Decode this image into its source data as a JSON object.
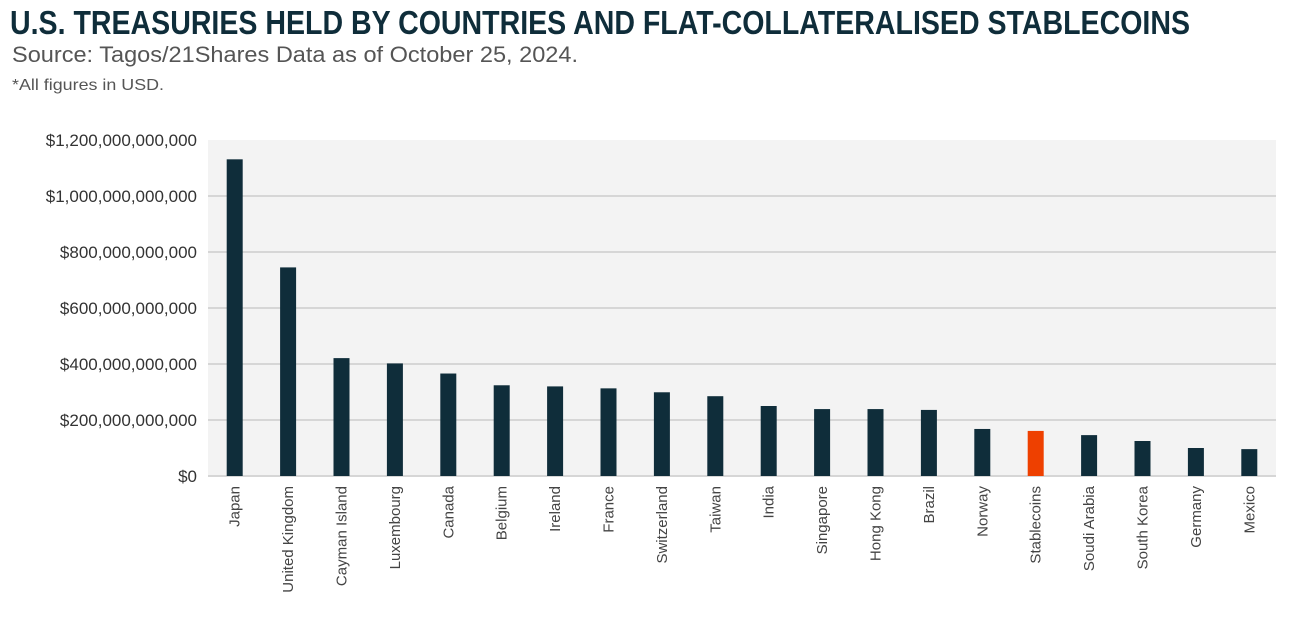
{
  "chart_data": {
    "type": "bar",
    "title": "U.S. TREASURIES HELD BY COUNTRIES AND FLAT-COLLATERALISED STABLECOINS",
    "subtitle": "Source: Tagos/21Shares Data as of October 25, 2024.",
    "note": "*All figures in USD.",
    "xlabel": "",
    "ylabel": "",
    "ylim": [
      0,
      1200000000000
    ],
    "grid": true,
    "yticks": [
      0,
      200000000000,
      400000000000,
      600000000000,
      800000000000,
      1000000000000,
      1200000000000
    ],
    "ytick_labels": [
      "$0",
      "$200,000,000,000",
      "$400,000,000,000",
      "$600,000,000,000",
      "$800,000,000,000",
      "$1,000,000,000,000",
      "$1,200,000,000,000"
    ],
    "categories": [
      "Japan",
      "United Kingdom",
      "Cayman Island",
      "Luxembourg",
      "Canada",
      "Belgium",
      "Ireland",
      "France",
      "Switzerland",
      "Taiwan",
      "India",
      "Singapore",
      "Hong Kong",
      "Brazil",
      "Norway",
      "Stablecoins",
      "Soudi Arabia",
      "South Korea",
      "Germany",
      "Mexico"
    ],
    "values": [
      1131000000000,
      745000000000,
      421000000000,
      402000000000,
      366000000000,
      324000000000,
      320000000000,
      313000000000,
      299000000000,
      285000000000,
      250000000000,
      239000000000,
      239000000000,
      236000000000,
      168000000000,
      161000000000,
      146000000000,
      125000000000,
      100000000000,
      96000000000
    ],
    "colors": {
      "default": "#0f2d3a",
      "highlight": "#ee4000",
      "highlight_category": "Stablecoins",
      "plot_bg": "#f3f3f3",
      "grid": "#d6d6d6"
    }
  }
}
